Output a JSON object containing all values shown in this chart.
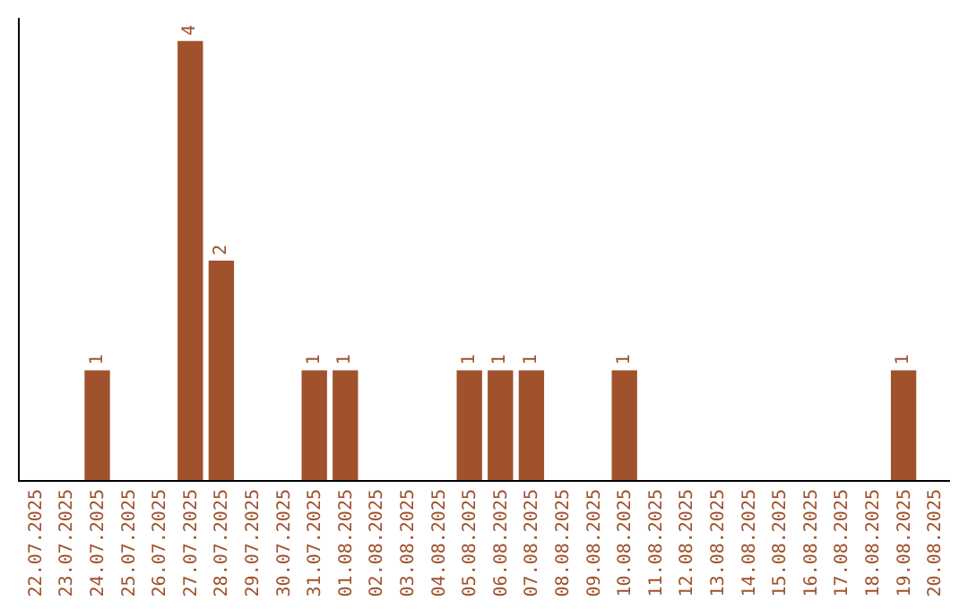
{
  "chart_data": {
    "type": "bar",
    "categories": [
      "22.07.2025",
      "23.07.2025",
      "24.07.2025",
      "25.07.2025",
      "26.07.2025",
      "27.07.2025",
      "28.07.2025",
      "29.07.2025",
      "30.07.2025",
      "31.07.2025",
      "01.08.2025",
      "02.08.2025",
      "03.08.2025",
      "04.08.2025",
      "05.08.2025",
      "06.08.2025",
      "07.08.2025",
      "08.08.2025",
      "09.08.2025",
      "10.08.2025",
      "11.08.2025",
      "12.08.2025",
      "13.08.2025",
      "14.08.2025",
      "15.08.2025",
      "16.08.2025",
      "17.08.2025",
      "18.08.2025",
      "19.08.2025",
      "20.08.2025"
    ],
    "values": [
      null,
      null,
      1,
      null,
      null,
      4,
      2,
      null,
      null,
      1,
      1,
      null,
      null,
      null,
      1,
      1,
      1,
      null,
      null,
      1,
      null,
      null,
      null,
      null,
      null,
      null,
      null,
      null,
      1,
      null
    ],
    "color": "#a0522d",
    "data_labels": true,
    "grid": false,
    "legend": false,
    "tick_labels": "x"
  }
}
